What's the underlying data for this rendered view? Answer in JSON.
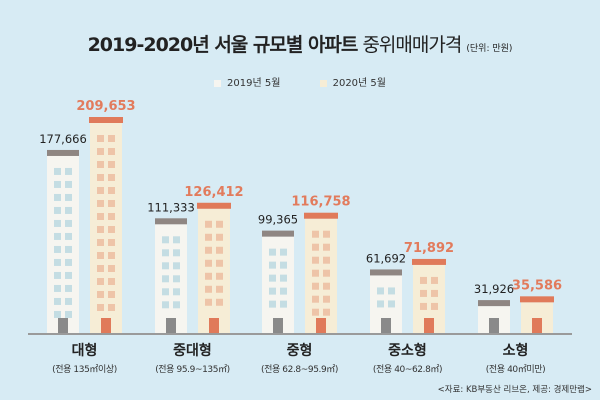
{
  "title": {
    "bold": "2019-2020년 서울 규모별 아파트",
    "light": "중위매매가격",
    "unit": "(단위: 만원)"
  },
  "source": "<자료: KB부동산 리브온, 제공: 경제만랩>",
  "colors": {
    "background": "#d7ebf4",
    "y2019_body": "#f6f5f0",
    "y2019_roof": "#8f8682",
    "y2019_window": "#c4dde3",
    "y2019_door": "#8a8a8a",
    "y2020_body": "#f6edd6",
    "y2020_roof": "#e07a5a",
    "y2020_window": "#eec4a8",
    "y2020_door": "#e07a5a",
    "y2020_label": "#e27b5c",
    "ground": "#9a9a9a"
  },
  "chart_data": {
    "type": "bar",
    "title": "2019-2020년 서울 규모별 아파트 중위매매가격",
    "unit": "만원",
    "categories": [
      "대형",
      "중대형",
      "중형",
      "중소형",
      "소형"
    ],
    "subcategories": [
      "(전용 135㎡이상)",
      "(전용 95.9~135㎡)",
      "(전용 62.8~95.9㎡)",
      "(전용 40~62.8㎡)",
      "(전용 40㎡미만)"
    ],
    "series": [
      {
        "name": "2019년 5월",
        "values": [
          177666,
          111333,
          99365,
          61692,
          31926
        ],
        "labels": [
          "177,666",
          "111,333",
          "99,365",
          "61,692",
          "31,926"
        ]
      },
      {
        "name": "2020년 5월",
        "values": [
          209653,
          126412,
          116758,
          71892,
          35586
        ],
        "labels": [
          "209,653",
          "126,412",
          "116,758",
          "71,892",
          "35,586"
        ]
      }
    ],
    "legend": "top-center"
  }
}
